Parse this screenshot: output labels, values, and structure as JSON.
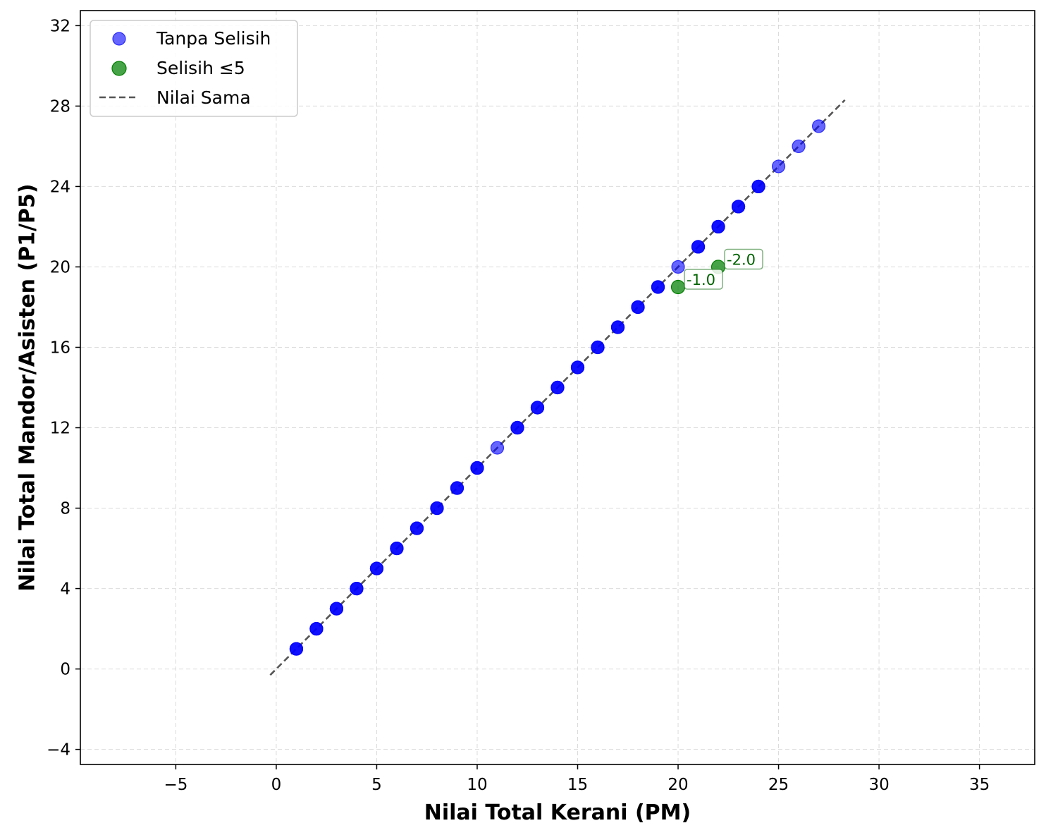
{
  "chart_data": {
    "type": "scatter",
    "xlabel": "Nilai Total Kerani (PM)",
    "ylabel": "Nilai Total Mandor/Asisten (P1/P5)",
    "xlim": [
      -9.75,
      37.75
    ],
    "ylim": [
      -4.75,
      32.75
    ],
    "x_ticks": [
      -5,
      0,
      5,
      10,
      15,
      20,
      25,
      30,
      35
    ],
    "y_ticks": [
      -4,
      0,
      4,
      8,
      12,
      16,
      20,
      24,
      28,
      32
    ],
    "x_tick_labels": [
      "−5",
      "0",
      "5",
      "10",
      "15",
      "20",
      "25",
      "30",
      "35"
    ],
    "y_tick_labels": [
      "−4",
      "0",
      "4",
      "8",
      "12",
      "16",
      "20",
      "24",
      "28",
      "32"
    ],
    "grid": true,
    "legend_position": "top-left",
    "series": [
      {
        "name": "Tanpa Selisih",
        "color": "#0000ff",
        "overlap_counts": [
          3,
          3,
          3,
          3,
          3,
          3,
          3,
          3,
          3,
          3,
          1,
          3,
          3,
          3,
          3,
          3,
          3,
          3,
          3,
          1,
          3,
          3,
          3,
          3,
          1,
          1,
          1
        ],
        "points": [
          [
            1,
            1
          ],
          [
            2,
            2
          ],
          [
            3,
            3
          ],
          [
            4,
            4
          ],
          [
            5,
            5
          ],
          [
            6,
            6
          ],
          [
            7,
            7
          ],
          [
            8,
            8
          ],
          [
            9,
            9
          ],
          [
            10,
            10
          ],
          [
            11,
            11
          ],
          [
            12,
            12
          ],
          [
            13,
            13
          ],
          [
            14,
            14
          ],
          [
            15,
            15
          ],
          [
            16,
            16
          ],
          [
            17,
            17
          ],
          [
            18,
            18
          ],
          [
            19,
            19
          ],
          [
            20,
            20
          ],
          [
            21,
            21
          ],
          [
            22,
            22
          ],
          [
            23,
            23
          ],
          [
            24,
            24
          ],
          [
            25,
            25
          ],
          [
            26,
            26
          ],
          [
            27,
            27
          ]
        ]
      },
      {
        "name": "Selisih ≤5",
        "color": "#008000",
        "points": [
          [
            20,
            19
          ],
          [
            22,
            20
          ]
        ]
      }
    ],
    "reference_line": {
      "name": "Nilai Sama",
      "color": "#555555",
      "style": "dashed",
      "from": [
        -0.3,
        -0.3
      ],
      "to": [
        28.3,
        28.3
      ]
    },
    "annotations": [
      {
        "text": "-1.0",
        "x": 20,
        "y": 19,
        "color": "#006400"
      },
      {
        "text": "-2.0",
        "x": 22,
        "y": 20,
        "color": "#006400"
      }
    ]
  }
}
